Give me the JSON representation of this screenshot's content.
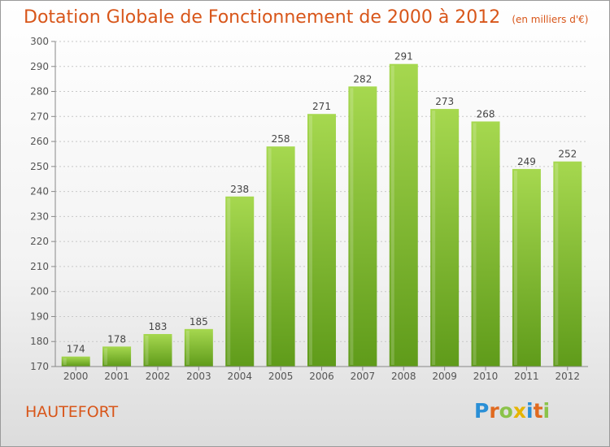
{
  "chart_data": {
    "type": "bar",
    "title": "Dotation Globale de Fonctionnement de 2000 à 2012",
    "unit_note": "(en milliers d'€)",
    "categories": [
      "2000",
      "2001",
      "2002",
      "2003",
      "2004",
      "2005",
      "2006",
      "2007",
      "2008",
      "2009",
      "2010",
      "2011",
      "2012"
    ],
    "values": [
      174,
      178,
      183,
      185,
      238,
      258,
      271,
      282,
      291,
      273,
      268,
      249,
      252
    ],
    "ylim": [
      170,
      300
    ],
    "yticks": [
      170,
      180,
      190,
      200,
      210,
      220,
      230,
      240,
      250,
      260,
      270,
      280,
      290,
      300
    ],
    "grid": true,
    "bar_color": "#7ab62e",
    "bar_color_light": "#a6d84f"
  },
  "commune": "HAUTEFORT",
  "logo": {
    "text": "Proxiti",
    "letters": [
      "P",
      "r",
      "o",
      "x",
      "i",
      "t",
      "i"
    ]
  }
}
